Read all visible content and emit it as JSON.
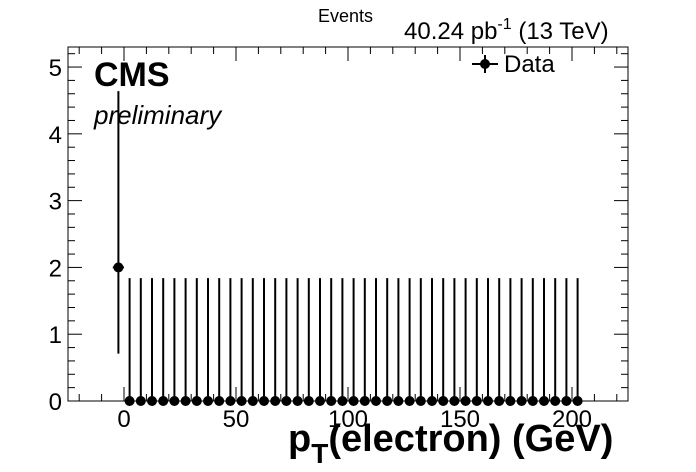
{
  "chart_data": {
    "type": "scatter",
    "title": "",
    "xlabel_main": "p",
    "xlabel_sub": "T",
    "xlabel_rest": "(electron) (GeV)",
    "ylabel": "Events",
    "lumi_value": "40.24 pb",
    "lumi_exp": "-1",
    "lumi_energy": " (13 TeV)",
    "cms_label": "CMS",
    "prelim_label": "preliminary",
    "xlim": [
      -25,
      225
    ],
    "ylim": [
      0,
      5.3
    ],
    "xticks": [
      0,
      50,
      100,
      150,
      200
    ],
    "yticks": [
      0,
      1,
      2,
      3,
      4,
      5
    ],
    "legend": {
      "position": "top-right",
      "entries": [
        "Data"
      ]
    },
    "series": [
      {
        "name": "Data",
        "marker": "circle",
        "color": "#000000",
        "x": [
          -2.5,
          2.5,
          7.5,
          12.5,
          17.5,
          22.5,
          27.5,
          32.5,
          37.5,
          42.5,
          47.5,
          52.5,
          57.5,
          62.5,
          67.5,
          72.5,
          77.5,
          82.5,
          87.5,
          92.5,
          97.5,
          102.5,
          107.5,
          112.5,
          117.5,
          122.5,
          127.5,
          132.5,
          137.5,
          142.5,
          147.5,
          152.5,
          157.5,
          162.5,
          167.5,
          172.5,
          177.5,
          182.5,
          187.5,
          192.5,
          197.5,
          202.5
        ],
        "y": [
          2,
          0,
          0,
          0,
          0,
          0,
          0,
          0,
          0,
          0,
          0,
          0,
          0,
          0,
          0,
          0,
          0,
          0,
          0,
          0,
          0,
          0,
          0,
          0,
          0,
          0,
          0,
          0,
          0,
          0,
          0,
          0,
          0,
          0,
          0,
          0,
          0,
          0,
          0,
          0,
          0,
          0
        ],
        "err_low": [
          1.29,
          0,
          0,
          0,
          0,
          0,
          0,
          0,
          0,
          0,
          0,
          0,
          0,
          0,
          0,
          0,
          0,
          0,
          0,
          0,
          0,
          0,
          0,
          0,
          0,
          0,
          0,
          0,
          0,
          0,
          0,
          0,
          0,
          0,
          0,
          0,
          0,
          0,
          0,
          0,
          0,
          0
        ],
        "err_high": [
          2.64,
          1.84,
          1.84,
          1.84,
          1.84,
          1.84,
          1.84,
          1.84,
          1.84,
          1.84,
          1.84,
          1.84,
          1.84,
          1.84,
          1.84,
          1.84,
          1.84,
          1.84,
          1.84,
          1.84,
          1.84,
          1.84,
          1.84,
          1.84,
          1.84,
          1.84,
          1.84,
          1.84,
          1.84,
          1.84,
          1.84,
          1.84,
          1.84,
          1.84,
          1.84,
          1.84,
          1.84,
          1.84,
          1.84,
          1.84,
          1.84,
          1.84
        ],
        "bin_width": 5
      }
    ]
  }
}
